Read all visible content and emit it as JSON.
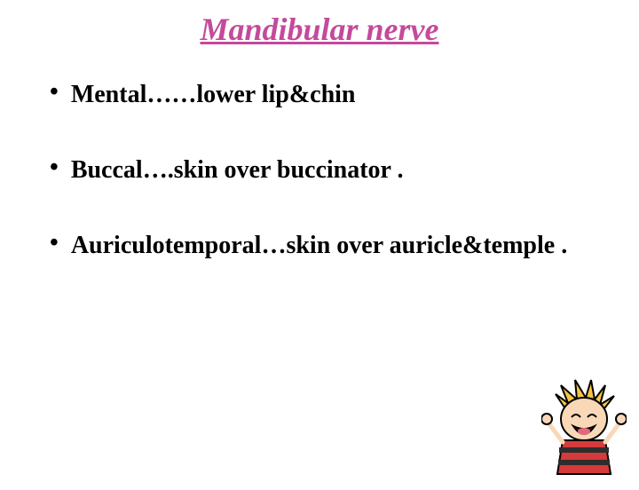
{
  "title": {
    "text": "Mandibular nerve",
    "color": "#c44a9a",
    "fontsize": 36
  },
  "bullets": {
    "fontsize": 28,
    "dot_color": "#000000",
    "text_color": "#000000",
    "gap_between": 52,
    "items": [
      {
        "text": "Mental……lower lip&chin"
      },
      {
        "text": "Buccal….skin over buccinator ."
      },
      {
        "text": "Auriculotemporal…skin over auricle&temple ."
      }
    ]
  },
  "cartoon": {
    "hair_color": "#f5c542",
    "skin_color": "#f9d8b8",
    "shirt_color": "#d63a3a",
    "stripe_color": "#2d2d2d",
    "outline_color": "#000000"
  }
}
